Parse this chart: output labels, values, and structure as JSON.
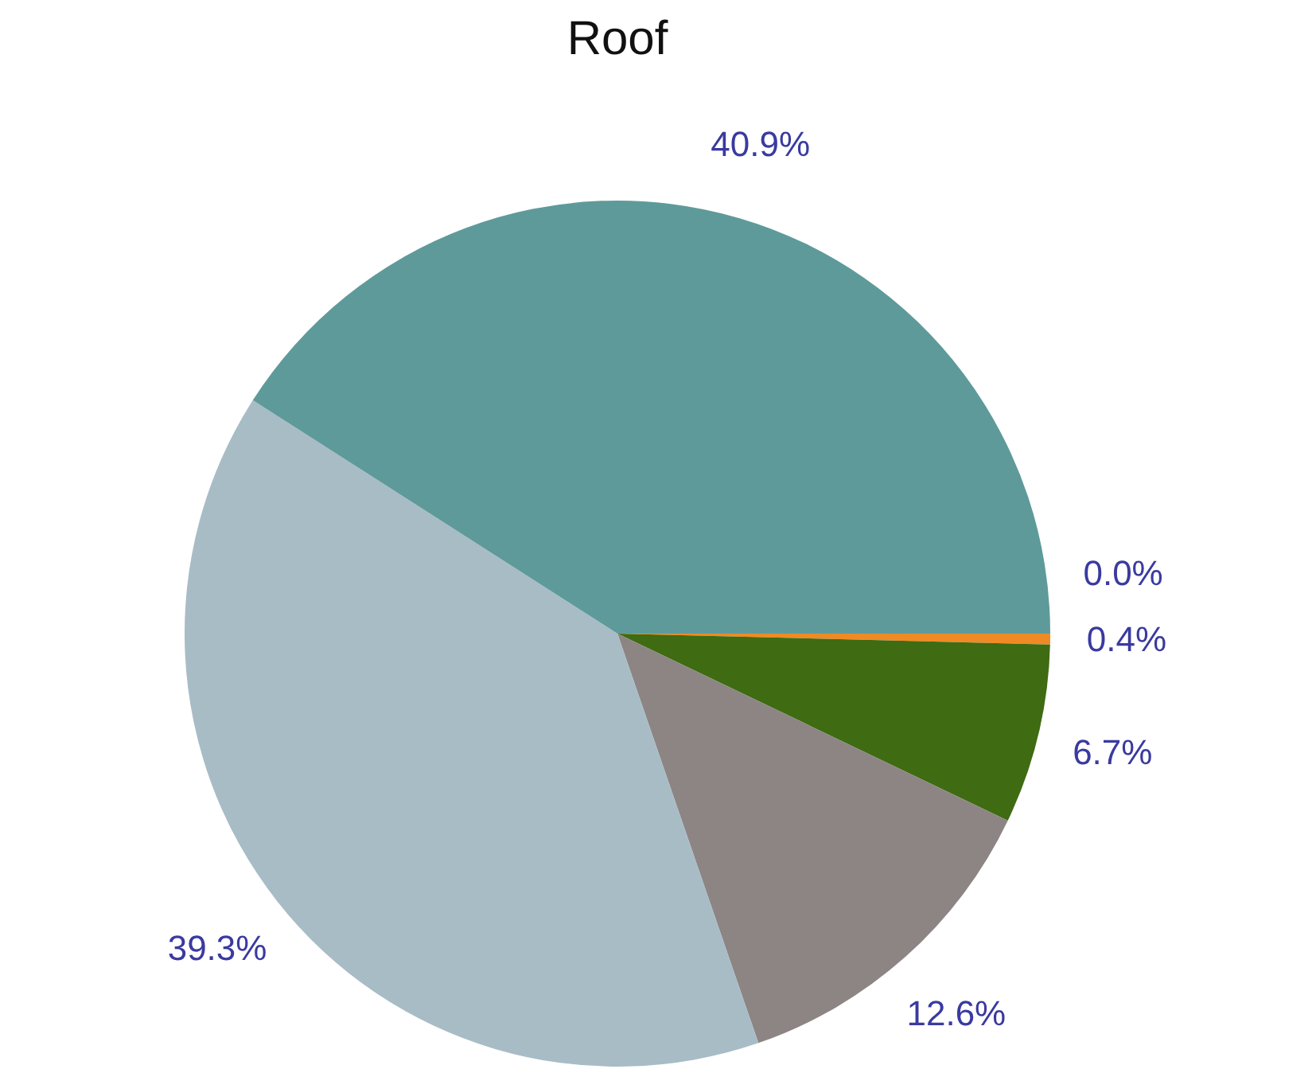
{
  "chart_data": {
    "type": "pie",
    "title": "Roof",
    "categories": [
      null,
      null,
      null,
      null,
      null,
      null
    ],
    "values": [
      0.0,
      0.4,
      6.7,
      12.6,
      39.3,
      40.9
    ],
    "colors": [
      "#c0504d",
      "#f08a24",
      "#3f6b12",
      "#8c8583",
      "#a8bcc6",
      "#5f9a9a"
    ],
    "value_labels": [
      "0.0%",
      "0.4%",
      "6.7%",
      "12.6%",
      "39.3%",
      "40.9%"
    ],
    "legend": false
  }
}
